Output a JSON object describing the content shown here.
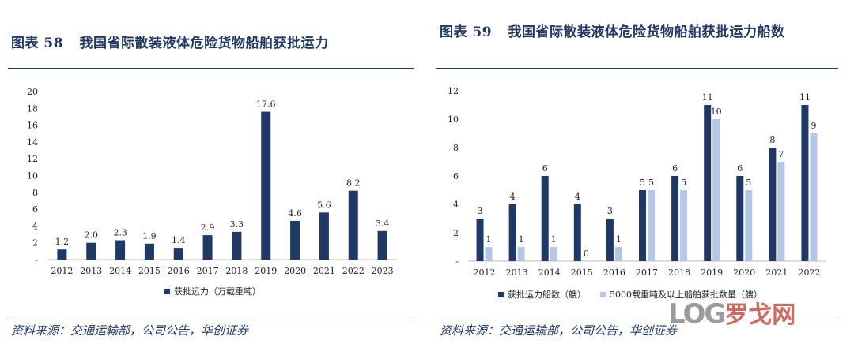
{
  "left": {
    "title_label": "图表",
    "title_num": "58",
    "title_text": "我国省际散装液体危险货物船舶获批运力",
    "source": "资料来源：交通运输部，公司公告，华创证券"
  },
  "right": {
    "title_label": "图表",
    "title_num": "59",
    "title_text": "我国省际散装液体危险货物船舶获批运力船数",
    "source": "资料来源：交通运输部，公司公告，华创证券"
  },
  "watermark": {
    "a": "LOG",
    "b": "罗戈网"
  },
  "colors": {
    "dark": "#1f3864",
    "light": "#b4c7e7",
    "text": "#1f3864"
  },
  "chart_data": [
    {
      "type": "bar",
      "categories": [
        "2012",
        "2013",
        "2014",
        "2015",
        "2016",
        "2017",
        "2018",
        "2019",
        "2020",
        "2021",
        "2022",
        "2023"
      ],
      "series": [
        {
          "name": "获批运力（万载重吨）",
          "values": [
            1.2,
            2.0,
            2.3,
            1.9,
            1.4,
            2.9,
            3.3,
            17.6,
            4.6,
            5.6,
            8.2,
            3.4
          ]
        }
      ],
      "value_labels": [
        "1.2",
        "2.0",
        "2.3",
        "1.9",
        "1.4",
        "2.9",
        "3.3",
        "17.6",
        "4.6",
        "5.6",
        "8.2",
        "3.4"
      ],
      "yticks": [
        "-",
        "2",
        "4",
        "6",
        "8",
        "10",
        "12",
        "14",
        "16",
        "18",
        "20"
      ],
      "ylim": [
        0,
        20
      ],
      "legend": "bottom",
      "title": "",
      "xlabel": "",
      "ylabel": ""
    },
    {
      "type": "bar",
      "categories": [
        "2012",
        "2013",
        "2014",
        "2015",
        "2016",
        "2017",
        "2018",
        "2019",
        "2020",
        "2021",
        "2022"
      ],
      "series": [
        {
          "name": "获批运力船数（艘）",
          "values": [
            3,
            4,
            6,
            4,
            3,
            5,
            6,
            11,
            6,
            8,
            11
          ]
        },
        {
          "name": "5000载重吨及以上船舶获批数量（艘）",
          "values": [
            1,
            1,
            1,
            0,
            1,
            5,
            5,
            10,
            5,
            7,
            9
          ]
        }
      ],
      "yticks": [
        "-",
        "2",
        "4",
        "6",
        "8",
        "10",
        "12"
      ],
      "ylim": [
        0,
        12
      ],
      "legend": "bottom",
      "title": "",
      "xlabel": "",
      "ylabel": ""
    }
  ]
}
